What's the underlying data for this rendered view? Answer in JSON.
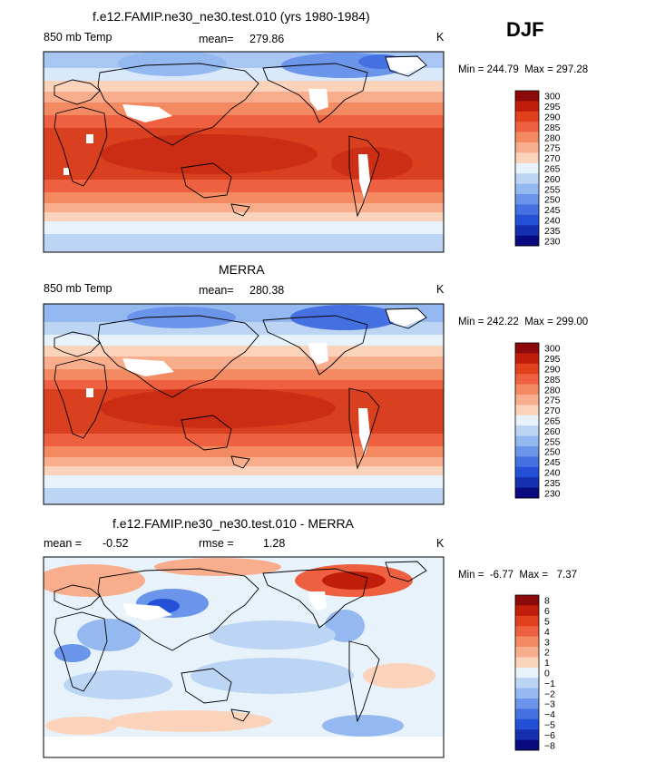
{
  "season": "DJF",
  "panels": [
    {
      "id": "model",
      "title": "f.e12.FAMIP.ne30_ne30.test.010 (yrs 1980-1984)",
      "left_label": "850 mb Temp",
      "mid_label": "mean=",
      "mid_value": "279.86",
      "units": "K",
      "minmax": "Min = 244.79  Max = 297.28"
    },
    {
      "id": "merra",
      "title": "MERRA",
      "left_label": "850 mb Temp",
      "mid_label": "mean=",
      "mid_value": "280.38",
      "units": "K",
      "minmax": "Min = 242.22  Max = 299.00"
    },
    {
      "id": "diff",
      "title": "f.e12.FAMIP.ne30_ne30.test.010 - MERRA",
      "left_label": "mean =",
      "left_value": "-0.52",
      "mid_label": "rmse =",
      "mid_value": "1.28",
      "units": "K",
      "minmax": "Min =  -6.77  Max =   7.37"
    }
  ],
  "chart_data": [
    {
      "type": "heatmap",
      "title": "f.e12.FAMIP.ne30_ne30.test.010 (yrs 1980-1984)",
      "variable": "850 mb Temp",
      "units": "K",
      "mean": 279.86,
      "min": 244.79,
      "max": 297.28,
      "colorbar_levels": [
        "300",
        "295",
        "290",
        "285",
        "280",
        "275",
        "270",
        "265",
        "260",
        "255",
        "250",
        "245",
        "240",
        "235",
        "230"
      ],
      "colorbar_colors": [
        "#8c0a0a",
        "#c01e0a",
        "#e0401c",
        "#ee6040",
        "#f38a62",
        "#f8ad8c",
        "#fbd2ba",
        "#e8f2fb",
        "#bcd5f5",
        "#94b8f0",
        "#6b95ea",
        "#4570e2",
        "#2450d8",
        "#1430b0",
        "#0a0a80"
      ]
    },
    {
      "type": "heatmap",
      "title": "MERRA",
      "variable": "850 mb Temp",
      "units": "K",
      "mean": 280.38,
      "min": 242.22,
      "max": 299.0,
      "colorbar_levels": [
        "300",
        "295",
        "290",
        "285",
        "280",
        "275",
        "270",
        "265",
        "260",
        "255",
        "250",
        "245",
        "240",
        "235",
        "230"
      ],
      "colorbar_colors": [
        "#8c0a0a",
        "#c01e0a",
        "#e0401c",
        "#ee6040",
        "#f38a62",
        "#f8ad8c",
        "#fbd2ba",
        "#e8f2fb",
        "#bcd5f5",
        "#94b8f0",
        "#6b95ea",
        "#4570e2",
        "#2450d8",
        "#1430b0",
        "#0a0a80"
      ]
    },
    {
      "type": "heatmap",
      "title": "f.e12.FAMIP.ne30_ne30.test.010 - MERRA",
      "units": "K",
      "mean": -0.52,
      "rmse": 1.28,
      "min": -6.77,
      "max": 7.37,
      "colorbar_levels": [
        "8",
        "6",
        "5",
        "4",
        "3",
        "2",
        "1",
        "0",
        "−1",
        "−2",
        "−3",
        "−4",
        "−5",
        "−6",
        "−8"
      ],
      "colorbar_colors": [
        "#8c0a0a",
        "#c01e0a",
        "#e0401c",
        "#ee6040",
        "#f38a62",
        "#f8ad8c",
        "#fbd2ba",
        "#e8f2fb",
        "#bcd5f5",
        "#94b8f0",
        "#6b95ea",
        "#4570e2",
        "#2450d8",
        "#1430b0",
        "#0a0a80"
      ]
    }
  ]
}
